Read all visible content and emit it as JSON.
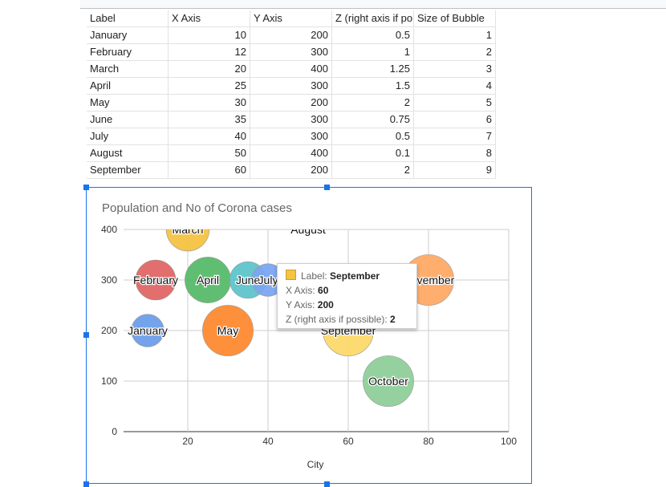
{
  "sheet": {
    "headers": [
      "Label",
      "X Axis",
      "Y Axis",
      "Z (right axis if po",
      "Size of Bubble"
    ],
    "rows": [
      [
        "January",
        "10",
        "200",
        "0.5",
        "1"
      ],
      [
        "February",
        "12",
        "300",
        "1",
        "2"
      ],
      [
        "March",
        "20",
        "400",
        "1.25",
        "3"
      ],
      [
        "April",
        "25",
        "300",
        "1.5",
        "4"
      ],
      [
        "May",
        "30",
        "200",
        "2",
        "5"
      ],
      [
        "June",
        "35",
        "300",
        "0.75",
        "6"
      ],
      [
        "July",
        "40",
        "300",
        "0.5",
        "7"
      ],
      [
        "August",
        "50",
        "400",
        "0.1",
        "8"
      ],
      [
        "September",
        "60",
        "200",
        "2",
        "9"
      ]
    ]
  },
  "chart_data": {
    "type": "scatter",
    "subtype": "bubble",
    "title": "Population and No of Corona cases",
    "xlabel": "City",
    "ylabel": "",
    "xlim": [
      4,
      100
    ],
    "ylim": [
      0,
      400
    ],
    "xticks": [
      "20",
      "40",
      "60",
      "80",
      "100"
    ],
    "yticks": [
      "0",
      "100",
      "200",
      "300",
      "400"
    ],
    "grid": true,
    "points": [
      {
        "label": "January",
        "x": 10,
        "y": 200,
        "size": 0.5,
        "color": "#6d9eeb"
      },
      {
        "label": "February",
        "x": 12,
        "y": 300,
        "size": 1,
        "color": "#e06666"
      },
      {
        "label": "March",
        "x": 20,
        "y": 400,
        "size": 1.25,
        "color": "#f6c342"
      },
      {
        "label": "April",
        "x": 25,
        "y": 300,
        "size": 1.5,
        "color": "#57bb6a"
      },
      {
        "label": "May",
        "x": 30,
        "y": 200,
        "size": 2,
        "color": "#ff8a30"
      },
      {
        "label": "June",
        "x": 35,
        "y": 300,
        "size": 0.75,
        "color": "#5ec4cb"
      },
      {
        "label": "July",
        "x": 40,
        "y": 300,
        "size": 0.5,
        "color": "#7ba7f0"
      },
      {
        "label": "August",
        "x": 50,
        "y": 400,
        "size": 0.1,
        "color": "#ffffff"
      },
      {
        "label": "September",
        "x": 60,
        "y": 200,
        "size": 2,
        "color": "#fcd96a"
      },
      {
        "label": "October",
        "x": 70,
        "y": 100,
        "size": 2,
        "color": "#8fcf9a"
      },
      {
        "label": "November",
        "x": 80,
        "y": 300,
        "size": 2,
        "color": "#ffaa66"
      }
    ],
    "tooltip": {
      "label_key": "Label: ",
      "label_val": "September",
      "x_key": "X Axis: ",
      "x_val": "60",
      "y_key": "Y Axis: ",
      "y_val": "200",
      "z_key": "Z (right axis if possible): ",
      "z_val": "2"
    }
  }
}
